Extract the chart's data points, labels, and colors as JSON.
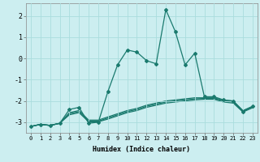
{
  "xlabel": "Humidex (Indice chaleur)",
  "background_color": "#cceef0",
  "grid_color": "#aadddd",
  "line_color": "#1a7a6e",
  "xlim": [
    -0.5,
    23.5
  ],
  "ylim": [
    -3.5,
    2.6
  ],
  "xticks": [
    0,
    1,
    2,
    3,
    4,
    5,
    6,
    7,
    8,
    9,
    10,
    11,
    12,
    13,
    14,
    15,
    16,
    17,
    18,
    19,
    20,
    21,
    22,
    23
  ],
  "yticks": [
    -3,
    -2,
    -1,
    0,
    1,
    2
  ],
  "line1_x": [
    0,
    1,
    2,
    3,
    4,
    5,
    6,
    7,
    8,
    9,
    10,
    11,
    12,
    13,
    14,
    15,
    16,
    17,
    18,
    19,
    20,
    21,
    22,
    23
  ],
  "line1_y": [
    -3.2,
    -3.1,
    -3.15,
    -3.05,
    -2.4,
    -2.3,
    -3.05,
    -3.0,
    -1.55,
    -0.3,
    0.4,
    0.3,
    -0.1,
    -0.25,
    2.3,
    1.25,
    -0.3,
    0.25,
    -1.8,
    -1.8,
    -1.95,
    -2.0,
    -2.5,
    -2.25
  ],
  "line2_x": [
    0,
    1,
    2,
    3,
    4,
    5,
    6,
    7,
    8,
    9,
    10,
    11,
    12,
    13,
    14,
    15,
    16,
    17,
    18,
    19,
    20,
    21,
    22,
    23
  ],
  "line2_y": [
    -3.2,
    -3.1,
    -3.15,
    -3.05,
    -2.55,
    -2.45,
    -2.9,
    -2.9,
    -2.75,
    -2.6,
    -2.45,
    -2.35,
    -2.2,
    -2.1,
    -2.0,
    -1.95,
    -1.9,
    -1.85,
    -1.85,
    -1.85,
    -1.97,
    -2.0,
    -2.45,
    -2.25
  ],
  "line3_x": [
    0,
    1,
    2,
    3,
    4,
    5,
    6,
    7,
    8,
    9,
    10,
    11,
    12,
    13,
    14,
    15,
    16,
    17,
    18,
    19,
    20,
    21,
    22,
    23
  ],
  "line3_y": [
    -3.2,
    -3.1,
    -3.15,
    -3.05,
    -2.6,
    -2.5,
    -2.95,
    -2.95,
    -2.8,
    -2.65,
    -2.5,
    -2.4,
    -2.25,
    -2.15,
    -2.05,
    -2.0,
    -1.95,
    -1.9,
    -1.88,
    -1.88,
    -2.0,
    -2.05,
    -2.48,
    -2.28
  ],
  "line4_x": [
    0,
    1,
    2,
    3,
    4,
    5,
    6,
    7,
    8,
    9,
    10,
    11,
    12,
    13,
    14,
    15,
    16,
    17,
    18,
    19,
    20,
    21,
    22,
    23
  ],
  "line4_y": [
    -3.2,
    -3.1,
    -3.15,
    -3.05,
    -2.65,
    -2.55,
    -2.98,
    -2.98,
    -2.85,
    -2.7,
    -2.55,
    -2.45,
    -2.3,
    -2.2,
    -2.1,
    -2.05,
    -2.0,
    -1.95,
    -1.92,
    -1.92,
    -2.05,
    -2.1,
    -2.52,
    -2.32
  ]
}
